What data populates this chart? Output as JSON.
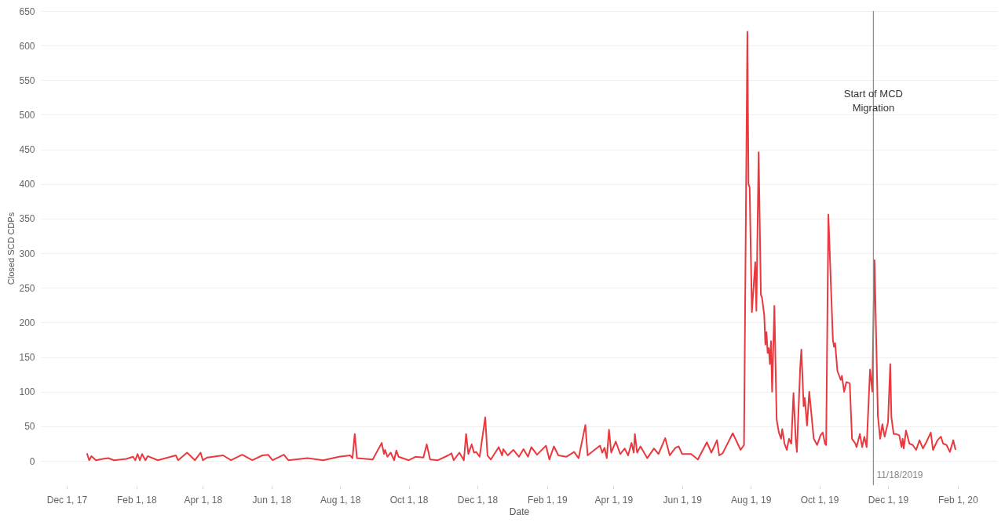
{
  "chart_data": {
    "type": "line",
    "xlabel": "Date",
    "ylabel": "Closed SCD CDPs",
    "x": [
      "2017-12-19",
      "2017-12-21",
      "2017-12-23",
      "2017-12-27",
      "2018-01-02",
      "2018-01-07",
      "2018-01-12",
      "2018-01-23",
      "2018-01-29",
      "2018-01-31",
      "2018-02-02",
      "2018-02-04",
      "2018-02-06",
      "2018-02-09",
      "2018-02-11",
      "2018-02-20",
      "2018-03-08",
      "2018-03-10",
      "2018-03-18",
      "2018-03-25",
      "2018-03-30",
      "2018-04-01",
      "2018-04-05",
      "2018-04-19",
      "2018-04-26",
      "2018-05-06",
      "2018-05-15",
      "2018-05-24",
      "2018-05-29",
      "2018-06-02",
      "2018-06-12",
      "2018-06-16",
      "2018-07-03",
      "2018-07-17",
      "2018-07-31",
      "2018-08-10",
      "2018-08-12",
      "2018-08-14",
      "2018-08-16",
      "2018-08-30",
      "2018-09-07",
      "2018-09-09",
      "2018-09-10",
      "2018-09-12",
      "2018-09-15",
      "2018-09-18",
      "2018-09-20",
      "2018-09-22",
      "2018-10-01",
      "2018-10-07",
      "2018-10-14",
      "2018-10-17",
      "2018-10-20",
      "2018-10-27",
      "2018-11-05",
      "2018-11-08",
      "2018-11-10",
      "2018-11-15",
      "2018-11-19",
      "2018-11-21",
      "2018-11-23",
      "2018-11-26",
      "2018-11-28",
      "2018-11-30",
      "2018-12-03",
      "2018-12-08",
      "2018-12-10",
      "2018-12-13",
      "2018-12-20",
      "2018-12-23",
      "2018-12-24",
      "2018-12-28",
      "2019-01-02",
      "2019-01-07",
      "2019-01-11",
      "2019-01-15",
      "2019-01-18",
      "2019-01-23",
      "2019-01-31",
      "2019-02-03",
      "2019-02-07",
      "2019-02-11",
      "2019-02-18",
      "2019-02-25",
      "2019-03-01",
      "2019-03-07",
      "2019-03-09",
      "2019-03-16",
      "2019-03-20",
      "2019-03-22",
      "2019-03-24",
      "2019-03-26",
      "2019-03-28",
      "2019-03-30",
      "2019-04-03",
      "2019-04-07",
      "2019-04-11",
      "2019-04-14",
      "2019-04-17",
      "2019-04-19",
      "2019-04-20",
      "2019-04-22",
      "2019-04-25",
      "2019-05-01",
      "2019-05-07",
      "2019-05-11",
      "2019-05-17",
      "2019-05-21",
      "2019-05-26",
      "2019-05-29",
      "2019-06-01",
      "2019-06-09",
      "2019-06-15",
      "2019-06-23",
      "2019-06-27",
      "2019-07-02",
      "2019-07-04",
      "2019-07-07",
      "2019-07-16",
      "2019-07-23",
      "2019-07-26",
      "2019-07-29",
      "2019-07-30",
      "2019-07-31",
      "2019-08-02",
      "2019-08-05",
      "2019-08-06",
      "2019-08-08",
      "2019-08-10",
      "2019-08-11",
      "2019-08-13",
      "2019-08-14",
      "2019-08-15",
      "2019-08-16",
      "2019-08-17",
      "2019-08-18",
      "2019-08-19",
      "2019-08-20",
      "2019-08-22",
      "2019-08-24",
      "2019-08-26",
      "2019-08-28",
      "2019-08-29",
      "2019-08-31",
      "2019-09-02",
      "2019-09-04",
      "2019-09-06",
      "2019-09-08",
      "2019-09-10",
      "2019-09-11",
      "2019-09-14",
      "2019-09-15",
      "2019-09-17",
      "2019-09-18",
      "2019-09-20",
      "2019-09-22",
      "2019-09-26",
      "2019-09-29",
      "2019-10-02",
      "2019-10-04",
      "2019-10-06",
      "2019-10-07",
      "2019-10-09",
      "2019-10-13",
      "2019-10-14",
      "2019-10-15",
      "2019-10-17",
      "2019-10-20",
      "2019-10-21",
      "2019-10-23",
      "2019-10-25",
      "2019-10-28",
      "2019-10-30",
      "2019-11-02",
      "2019-11-03",
      "2019-11-06",
      "2019-11-08",
      "2019-11-10",
      "2019-11-12",
      "2019-11-15",
      "2019-11-17",
      "2019-11-19",
      "2019-11-22",
      "2019-11-24",
      "2019-11-26",
      "2019-11-28",
      "2019-12-01",
      "2019-12-03",
      "2019-12-04",
      "2019-12-06",
      "2019-12-08",
      "2019-12-11",
      "2019-12-13",
      "2019-12-14",
      "2019-12-15",
      "2019-12-17",
      "2019-12-20",
      "2019-12-23",
      "2019-12-26",
      "2019-12-29",
      "2020-01-01",
      "2020-01-04",
      "2020-01-08",
      "2020-01-10",
      "2020-01-14",
      "2020-01-17",
      "2020-01-19",
      "2020-01-22",
      "2020-01-25",
      "2020-01-28",
      "2020-01-30"
    ],
    "series": [
      {
        "color": "#e8393f",
        "values": [
          11,
          1,
          7,
          1,
          3,
          4,
          1,
          3,
          6,
          1,
          10,
          1,
          10,
          1,
          7,
          1,
          8,
          1,
          12,
          1,
          12,
          1,
          5,
          8,
          1,
          9,
          1,
          8,
          9,
          1,
          9,
          1,
          4,
          1,
          6,
          8,
          4,
          39,
          4,
          2,
          26,
          10,
          16,
          6,
          12,
          1,
          15,
          6,
          1,
          6,
          5,
          24,
          2,
          1,
          8,
          11,
          1,
          12,
          1,
          39,
          10,
          24,
          12,
          13,
          6,
          63,
          8,
          2,
          20,
          8,
          17,
          8,
          16,
          6,
          17,
          6,
          20,
          9,
          22,
          2,
          21,
          8,
          6,
          13,
          4,
          52,
          8,
          17,
          22,
          12,
          19,
          4,
          45,
          12,
          28,
          10,
          18,
          8,
          26,
          12,
          39,
          12,
          21,
          4,
          18,
          10,
          33,
          8,
          19,
          21,
          10,
          10,
          2,
          27,
          12,
          30,
          8,
          11,
          40,
          16,
          23,
          620,
          400,
          395,
          215,
          287,
          217,
          446,
          240,
          236,
          210,
          168,
          186,
          156,
          163,
          140,
          173,
          100,
          224,
          60,
          41,
          32,
          46,
          25,
          16,
          32,
          25,
          98,
          30,
          13,
          137,
          161,
          79,
          91,
          51,
          100,
          32,
          23,
          37,
          41,
          25,
          23,
          356,
          175,
          165,
          170,
          130,
          117,
          123,
          100,
          114,
          112,
          32,
          25,
          20,
          39,
          20,
          35,
          20,
          132,
          100,
          290,
          65,
          32,
          53,
          35,
          56,
          140,
          63,
          39,
          39,
          37,
          20,
          32,
          18,
          44,
          25,
          23,
          16,
          30,
          18,
          27,
          41,
          16,
          30,
          35,
          25,
          23,
          13,
          30,
          16
        ]
      }
    ],
    "xlim": [
      "2017-11-08",
      "2020-03-07"
    ],
    "xticks": [
      {
        "value": "2017-12-01",
        "label": "Dec 1, 17"
      },
      {
        "value": "2018-02-01",
        "label": "Feb 1, 18"
      },
      {
        "value": "2018-04-01",
        "label": "Apr 1, 18"
      },
      {
        "value": "2018-06-01",
        "label": "Jun 1, 18"
      },
      {
        "value": "2018-08-01",
        "label": "Aug 1, 18"
      },
      {
        "value": "2018-10-01",
        "label": "Oct 1, 18"
      },
      {
        "value": "2018-12-01",
        "label": "Dec 1, 18"
      },
      {
        "value": "2019-02-01",
        "label": "Feb 1, 19"
      },
      {
        "value": "2019-04-01",
        "label": "Apr 1, 19"
      },
      {
        "value": "2019-06-01",
        "label": "Jun 1, 19"
      },
      {
        "value": "2019-08-01",
        "label": "Aug 1, 19"
      },
      {
        "value": "2019-10-01",
        "label": "Oct 1, 19"
      },
      {
        "value": "2019-12-01",
        "label": "Dec 1, 19"
      },
      {
        "value": "2020-02-01",
        "label": "Feb 1, 20"
      }
    ],
    "ylim": [
      -35,
      650
    ],
    "yticks": [
      0,
      50,
      100,
      150,
      200,
      250,
      300,
      350,
      400,
      450,
      500,
      550,
      600,
      650
    ],
    "grid": "y",
    "marker": "none",
    "line_style": "solid",
    "ref_lines": [
      {
        "axis": "x",
        "value": "2019-11-18",
        "label": "11/18/2019",
        "color": "#8c8c8c"
      }
    ],
    "annotations": [
      {
        "text": "Start of MCD\nMigration",
        "x": "2019-11-18",
        "y": 530
      }
    ]
  }
}
